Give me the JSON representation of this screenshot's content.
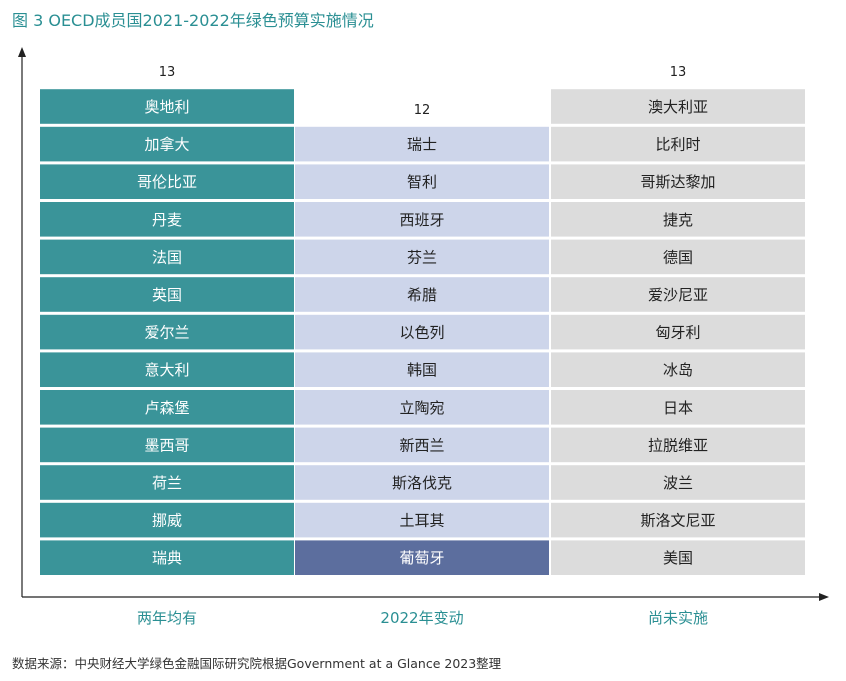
{
  "title": "图 3 OECD成员国2021-2022年绿色预算实施情况",
  "source": "数据来源：中央财经大学绿色金融国际研究院根据Government at a Glance 2023整理",
  "chart_data": {
    "type": "table",
    "categories": [
      "两年均有",
      "2022年变动",
      "尚未实施"
    ],
    "counts": [
      13,
      12,
      13
    ],
    "columns": [
      {
        "category": "两年均有",
        "count": 13,
        "countries": [
          "奥地利",
          "加拿大",
          "哥伦比亚",
          "丹麦",
          "法国",
          "英国",
          "爱尔兰",
          "意大利",
          "卢森堡",
          "墨西哥",
          "荷兰",
          "挪威",
          "瑞典"
        ]
      },
      {
        "category": "2022年变动",
        "count": 12,
        "countries": [
          "瑞士",
          "智利",
          "西班牙",
          "芬兰",
          "希腊",
          "以色列",
          "韩国",
          "立陶宛",
          "新西兰",
          "斯洛伐克",
          "土耳其",
          "葡萄牙"
        ]
      },
      {
        "category": "尚未实施",
        "count": 13,
        "countries": [
          "澳大利亚",
          "比利时",
          "哥斯达黎加",
          "捷克",
          "德国",
          "爱沙尼亚",
          "匈牙利",
          "冰岛",
          "日本",
          "拉脱维亚",
          "波兰",
          "斯洛文尼亚",
          "美国"
        ]
      }
    ],
    "colors": {
      "both_years": "#3a9499",
      "changed_2022": "#cdd5ea",
      "changed_2022_last": "#5c6e9e",
      "not_implemented": "#dcdcdc",
      "category_label": "#2a8f93",
      "axis": "#222222"
    }
  }
}
